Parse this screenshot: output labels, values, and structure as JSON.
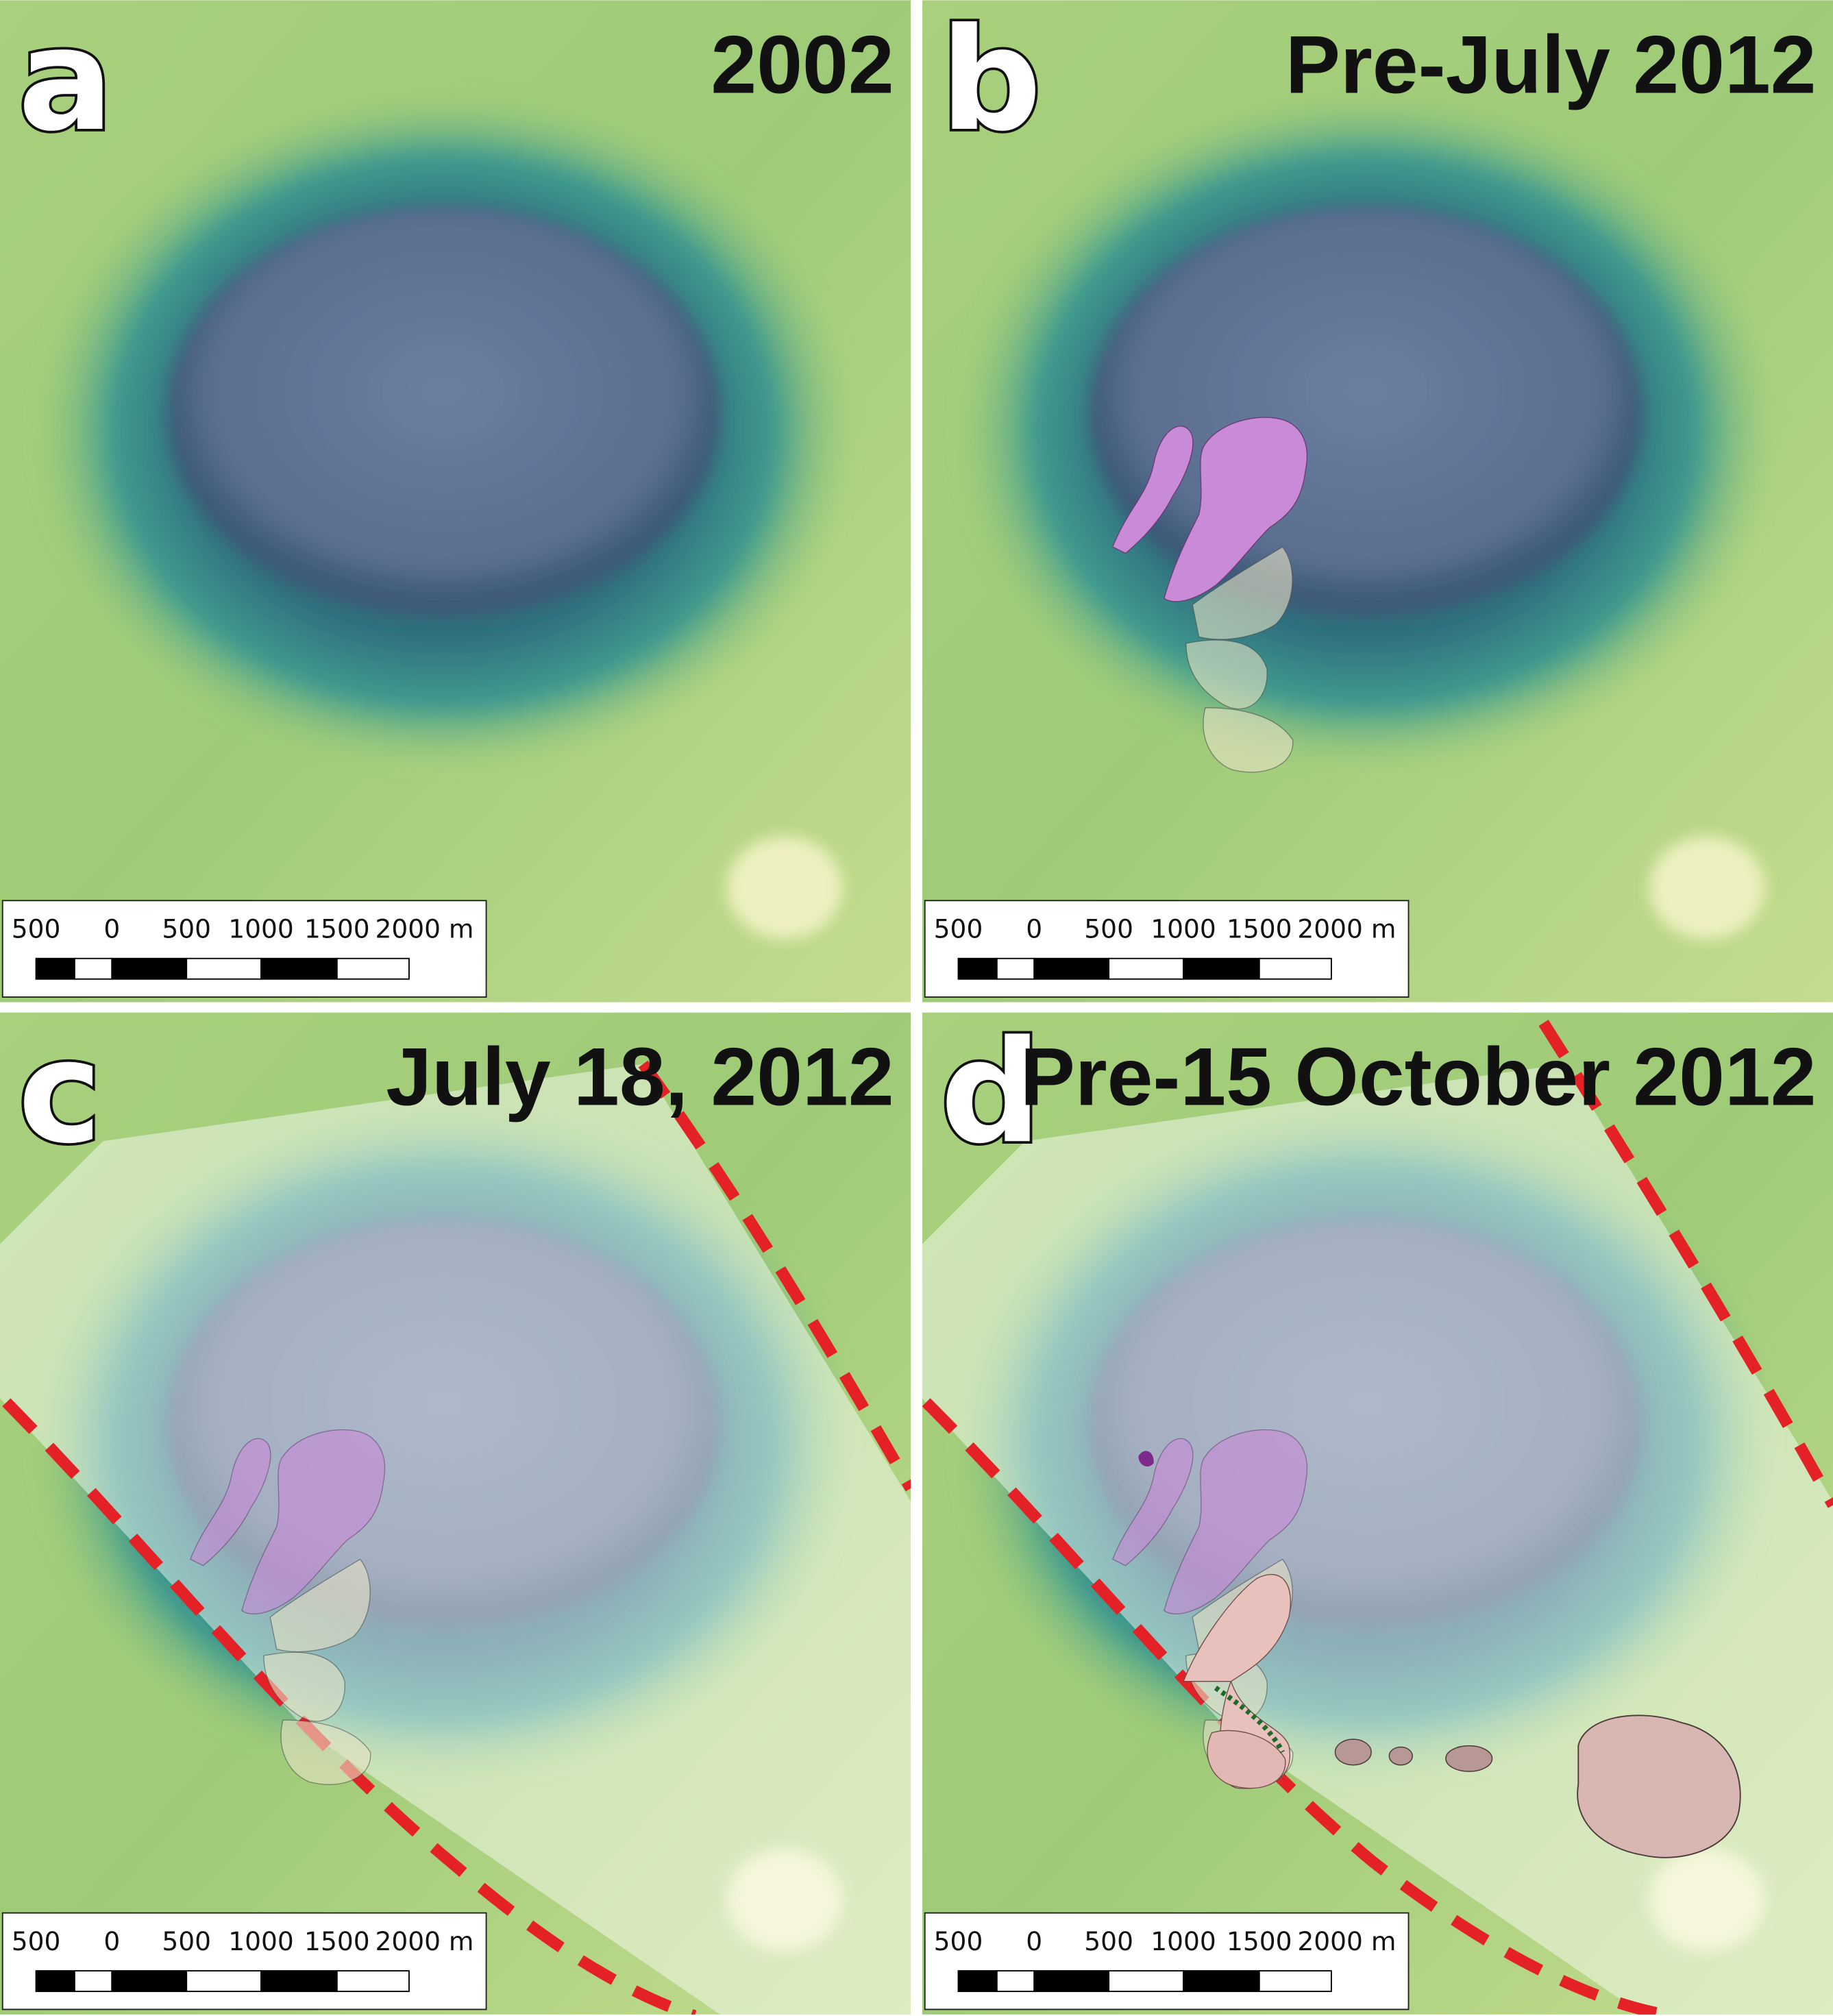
{
  "panels": [
    {
      "letter": "a",
      "title": "2002",
      "scale_labels": [
        "500",
        "0",
        "500",
        "1000",
        "1500",
        "2000 m"
      ]
    },
    {
      "letter": "b",
      "title": "Pre-July 2012",
      "scale_labels": [
        "500",
        "0",
        "500",
        "1000",
        "1500",
        "2000 m"
      ]
    },
    {
      "letter": "c",
      "title": "July 18, 2012",
      "scale_labels": [
        "500",
        "0",
        "500",
        "1000",
        "1500",
        "2000 m"
      ]
    },
    {
      "letter": "d",
      "title": "Pre-15 October 2012",
      "scale_labels": [
        "500",
        "0",
        "500",
        "1000",
        "1500",
        "2000 m"
      ]
    }
  ]
}
